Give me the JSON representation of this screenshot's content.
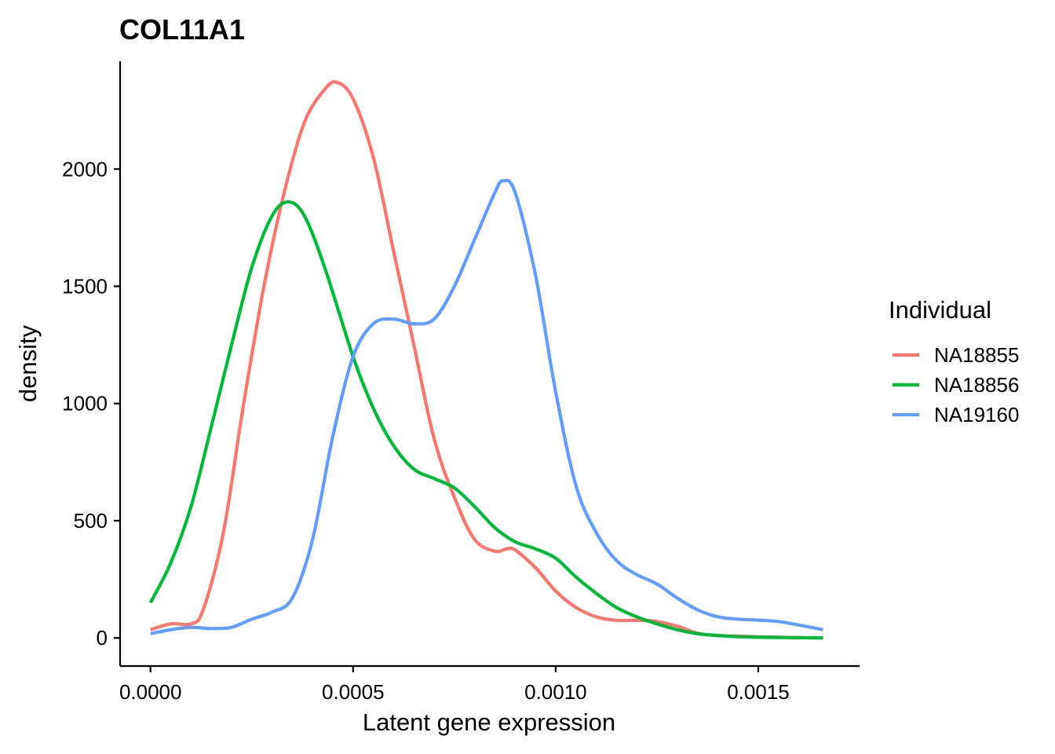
{
  "chart_data": {
    "type": "line",
    "title": "COL11A1",
    "xlabel": "Latent gene expression",
    "ylabel": "density",
    "xlim": [
      -7.5e-05,
      0.00175
    ],
    "ylim": [
      -120,
      2460
    ],
    "xticks": [
      0.0,
      0.0005,
      0.001,
      0.0015
    ],
    "xtick_labels": [
      "0.0000",
      "0.0005",
      "0.0010",
      "0.0015"
    ],
    "yticks": [
      0,
      500,
      1000,
      1500,
      2000
    ],
    "ytick_labels": [
      "0",
      "500",
      "1000",
      "1500",
      "2000"
    ],
    "grid": false,
    "legend": {
      "title": "Individual",
      "position": "right"
    },
    "series": [
      {
        "name": "NA18855",
        "color": "#F8766D",
        "x": [
          0.0,
          5e-05,
          0.0001,
          0.00013,
          0.00018,
          0.00023,
          0.00028,
          0.00033,
          0.00038,
          0.00043,
          0.00046,
          0.0005,
          0.00055,
          0.0006,
          0.00065,
          0.0007,
          0.00075,
          0.0008,
          0.00085,
          0.00088,
          0.0009,
          0.00095,
          0.001,
          0.00105,
          0.0011,
          0.00115,
          0.0012,
          0.00125,
          0.0013,
          0.00135,
          0.0014,
          0.00145,
          0.0015,
          0.00155,
          0.0016,
          0.00166
        ],
        "y": [
          35,
          60,
          60,
          120,
          450,
          1000,
          1500,
          1900,
          2200,
          2340,
          2370,
          2300,
          2050,
          1650,
          1250,
          850,
          600,
          420,
          370,
          380,
          375,
          300,
          200,
          130,
          90,
          75,
          75,
          70,
          50,
          20,
          10,
          8,
          5,
          3,
          1,
          0
        ]
      },
      {
        "name": "NA18856",
        "color": "#00BA38",
        "x": [
          0.0,
          5e-05,
          0.0001,
          0.00015,
          0.0002,
          0.00025,
          0.0003,
          0.00034,
          0.00038,
          0.00043,
          0.0005,
          0.00055,
          0.0006,
          0.00065,
          0.0007,
          0.00075,
          0.0008,
          0.00085,
          0.0009,
          0.00095,
          0.001,
          0.00105,
          0.0011,
          0.00115,
          0.0012,
          0.00125,
          0.0013,
          0.00135,
          0.0014,
          0.00145,
          0.0015,
          0.00155,
          0.0016,
          0.00166
        ],
        "y": [
          150,
          320,
          560,
          900,
          1250,
          1580,
          1800,
          1860,
          1800,
          1580,
          1200,
          980,
          820,
          720,
          680,
          640,
          560,
          470,
          410,
          380,
          340,
          260,
          190,
          130,
          90,
          60,
          35,
          18,
          10,
          5,
          3,
          2,
          1,
          0
        ]
      },
      {
        "name": "NA19160",
        "color": "#619CFF",
        "x": [
          0.0,
          5e-05,
          0.0001,
          0.00015,
          0.0002,
          0.00025,
          0.0003,
          0.00035,
          0.0004,
          0.00045,
          0.0005,
          0.00055,
          0.0006,
          0.00065,
          0.0007,
          0.00075,
          0.0008,
          0.00085,
          0.00087,
          0.0009,
          0.00095,
          0.001,
          0.00105,
          0.0011,
          0.00115,
          0.0012,
          0.00125,
          0.0013,
          0.00135,
          0.0014,
          0.00145,
          0.0015,
          0.00155,
          0.0016,
          0.00166
        ],
        "y": [
          18,
          35,
          45,
          40,
          45,
          80,
          110,
          170,
          420,
          860,
          1200,
          1340,
          1360,
          1340,
          1360,
          1500,
          1700,
          1900,
          1950,
          1900,
          1550,
          1050,
          650,
          450,
          330,
          270,
          230,
          170,
          120,
          90,
          80,
          76,
          70,
          55,
          35
        ]
      }
    ]
  }
}
